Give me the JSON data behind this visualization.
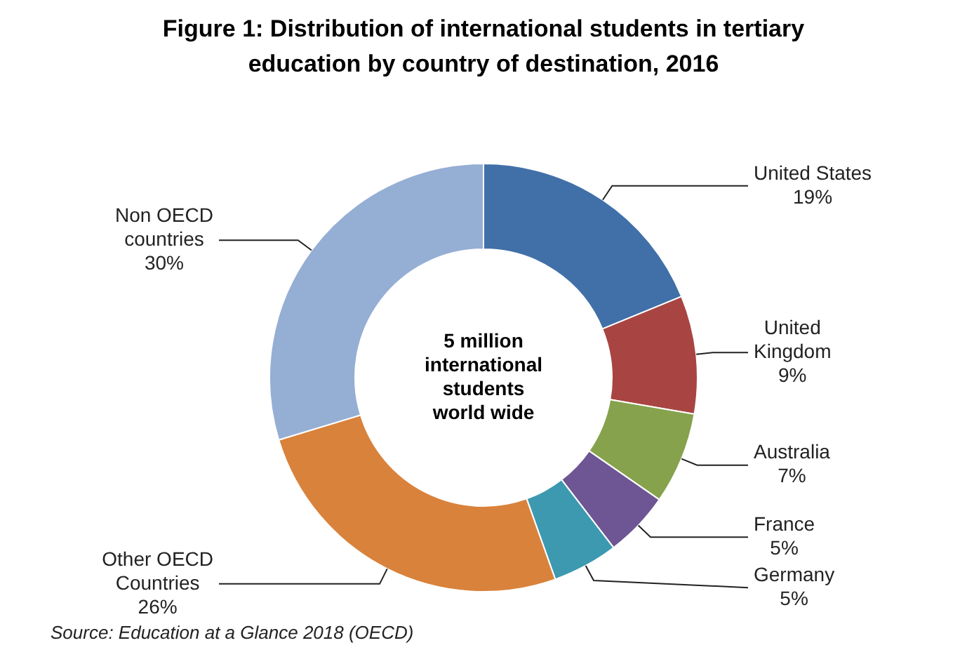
{
  "chart_data": {
    "type": "donut",
    "title": "Figure 1: Distribution of international students in tertiary education by country of destination, 2016",
    "categories": [
      "United States",
      "United Kingdom",
      "Australia",
      "France",
      "Germany",
      "Other OECD Countries",
      "Non OECD countries"
    ],
    "values": [
      19,
      9,
      7,
      5,
      5,
      26,
      30
    ],
    "colors": [
      "#4170a8",
      "#a84542",
      "#86a24c",
      "#6e5593",
      "#3c99b0",
      "#d9823b",
      "#95aed4"
    ],
    "value_labels": [
      "19%",
      "9%",
      "7%",
      "5%",
      "5%",
      "26%",
      "30%"
    ],
    "annotations": [
      "5 million international students world wide",
      "Source: Education at a Glance 2018 (OECD)"
    ]
  }
}
